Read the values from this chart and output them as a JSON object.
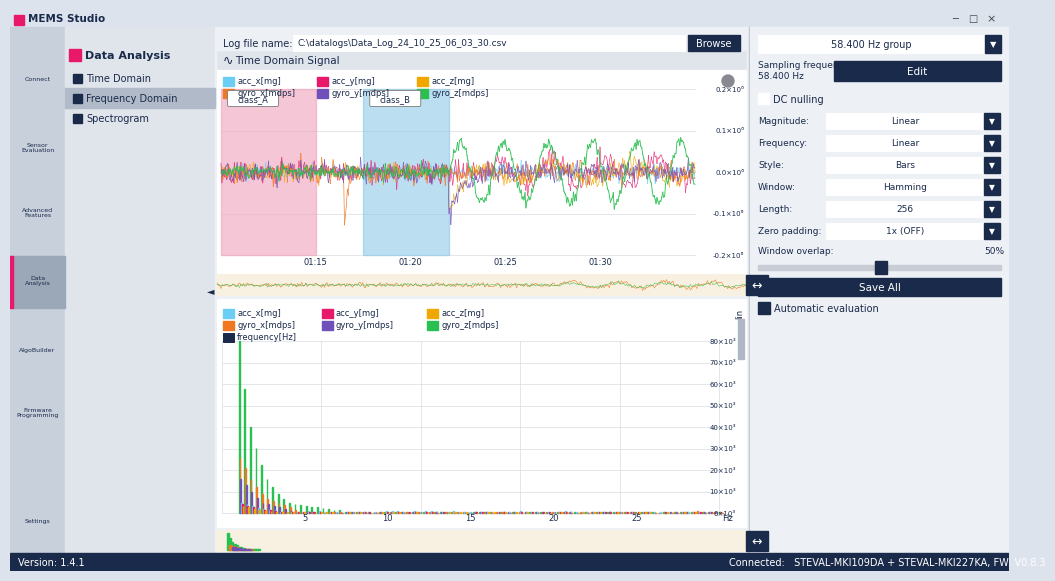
{
  "bg_color": "#dce3ed",
  "sidebar_icon_bg": "#c8d0dc",
  "nav_panel_bg": "#e0e5ec",
  "nav_active_bg": "#b0bac8",
  "content_bg": "#edf0f5",
  "white": "#ffffff",
  "dark_navy": "#1a2a4a",
  "pink_accent": "#e8186a",
  "acc_x_color": "#6bcff5",
  "acc_y_color": "#e8186a",
  "acc_z_color": "#f0a800",
  "gyro_x_color": "#f07820",
  "gyro_y_color": "#7050b8",
  "gyro_z_color": "#28c050",
  "orange_border": "#e08000",
  "minimap_bg": "#f8f0e0",
  "grid_color": "#d8dde5",
  "class_A_color": "#f0a8c0",
  "class_B_color": "#90c8e8",
  "status_bg": "#1a2a4a",
  "title_bar_text": "MEMS Studio",
  "log_label": "Log file name:",
  "log_value": "C:\\datalogs\\Data_Log_24_10_25_06_03_30.csv",
  "browse_btn": "Browse",
  "time_domain_title": "Time Domain Signal",
  "nav_panel_text": "Data Analysis",
  "nav_items": [
    "Time Domain",
    "Frequency Domain",
    "Spectrogram"
  ],
  "nav_active": "Frequency Domain",
  "group_dropdown": "58.400 Hz group",
  "sampling_label1": "Sampling frequency",
  "sampling_label2": "58.400 Hz",
  "edit_btn": "Edit",
  "dc_nulling": "DC nulling",
  "magnitude_label": "Magnitude:",
  "magnitude_value": "Linear",
  "frequency_label": "Frequency:",
  "frequency_value": "Linear",
  "style_label": "Style:",
  "style_value": "Bars",
  "window_label": "Window:",
  "window_value": "Hamming",
  "length_label": "Length:",
  "length_value": "256",
  "zero_padding_label": "Zero padding:",
  "zero_padding_value": "1x (OFF)",
  "window_overlap_label": "Window overlap:",
  "window_overlap_value": "50%",
  "save_all_btn": "Save All",
  "auto_eval": "Automatic evaluation",
  "version_text": "Version: 1.4.1",
  "connected_text": "Connected:   STEVAL-MKI109DA + STEVAL-MKI227KA, FW: V0.8.3"
}
